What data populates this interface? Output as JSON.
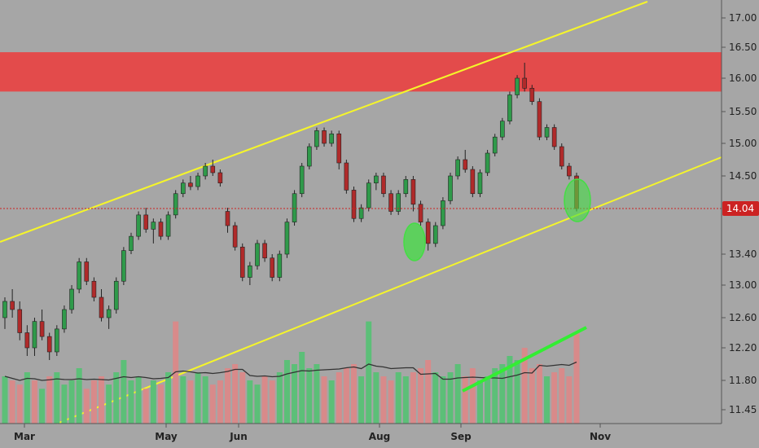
{
  "chart_data": {
    "type": "candlestick",
    "x_labels": [
      "Mar",
      "May",
      "Jun",
      "Aug",
      "Sep",
      "Nov"
    ],
    "y_ticks": [
      "17.00",
      "16.50",
      "16.00",
      "15.50",
      "15.00",
      "14.50",
      "13.40",
      "13.00",
      "12.60",
      "12.20",
      "11.80",
      "11.45"
    ],
    "last_price": {
      "label": "14.04",
      "value": 14.04,
      "color": "#cc2222"
    },
    "resistance_zone": {
      "low": 15.8,
      "high": 16.42,
      "color": "#e34b4b"
    },
    "channel_color": "#f5f52a",
    "volume_trend_color": "#33ee33",
    "marker_color": "#44dd44",
    "up_color": "#2f9a4a",
    "down_color": "#b02a2a",
    "volume_up_color": "#5cbf78",
    "volume_down_color": "#d88a8a",
    "candles": [
      [
        12.6,
        12.85,
        12.45,
        12.8
      ],
      [
        12.8,
        12.95,
        12.6,
        12.7
      ],
      [
        12.7,
        12.8,
        12.3,
        12.4
      ],
      [
        12.4,
        12.5,
        12.1,
        12.2
      ],
      [
        12.2,
        12.6,
        12.1,
        12.55
      ],
      [
        12.55,
        12.7,
        12.3,
        12.35
      ],
      [
        12.35,
        12.4,
        12.05,
        12.15
      ],
      [
        12.15,
        12.5,
        12.1,
        12.45
      ],
      [
        12.45,
        12.75,
        12.4,
        12.7
      ],
      [
        12.7,
        13.0,
        12.65,
        12.95
      ],
      [
        12.95,
        13.35,
        12.9,
        13.3
      ],
      [
        13.3,
        13.35,
        13.0,
        13.05
      ],
      [
        13.05,
        13.1,
        12.8,
        12.85
      ],
      [
        12.85,
        12.95,
        12.55,
        12.6
      ],
      [
        12.6,
        12.75,
        12.45,
        12.7
      ],
      [
        12.7,
        13.1,
        12.65,
        13.05
      ],
      [
        13.05,
        13.5,
        13.0,
        13.45
      ],
      [
        13.45,
        13.7,
        13.4,
        13.65
      ],
      [
        13.65,
        14.0,
        13.6,
        13.95
      ],
      [
        13.95,
        14.05,
        13.7,
        13.75
      ],
      [
        13.75,
        13.9,
        13.55,
        13.85
      ],
      [
        13.85,
        13.9,
        13.6,
        13.65
      ],
      [
        13.65,
        14.0,
        13.6,
        13.95
      ],
      [
        13.95,
        14.3,
        13.9,
        14.25
      ],
      [
        14.25,
        14.45,
        14.2,
        14.4
      ],
      [
        14.4,
        14.5,
        14.3,
        14.35
      ],
      [
        14.35,
        14.55,
        14.3,
        14.5
      ],
      [
        14.5,
        14.7,
        14.45,
        14.65
      ],
      [
        14.65,
        14.75,
        14.5,
        14.55
      ],
      [
        14.55,
        14.6,
        14.35,
        14.4
      ],
      [
        14.0,
        14.05,
        13.7,
        13.8
      ],
      [
        13.8,
        13.85,
        13.45,
        13.5
      ],
      [
        13.5,
        13.55,
        13.05,
        13.1
      ],
      [
        13.1,
        13.3,
        13.0,
        13.25
      ],
      [
        13.25,
        13.6,
        13.2,
        13.55
      ],
      [
        13.55,
        13.6,
        13.3,
        13.35
      ],
      [
        13.35,
        13.4,
        13.05,
        13.1
      ],
      [
        13.1,
        13.45,
        13.05,
        13.4
      ],
      [
        13.4,
        13.9,
        13.35,
        13.85
      ],
      [
        13.85,
        14.3,
        13.8,
        14.25
      ],
      [
        14.25,
        14.7,
        14.2,
        14.65
      ],
      [
        14.65,
        15.0,
        14.6,
        14.95
      ],
      [
        14.95,
        15.25,
        14.9,
        15.2
      ],
      [
        15.2,
        15.25,
        14.95,
        15.0
      ],
      [
        15.0,
        15.2,
        14.95,
        15.15
      ],
      [
        15.15,
        15.2,
        14.6,
        14.7
      ],
      [
        14.7,
        14.75,
        14.25,
        14.3
      ],
      [
        14.3,
        14.35,
        13.85,
        13.9
      ],
      [
        13.9,
        14.1,
        13.85,
        14.05
      ],
      [
        14.05,
        14.45,
        14.0,
        14.4
      ],
      [
        14.4,
        14.55,
        14.3,
        14.5
      ],
      [
        14.5,
        14.55,
        14.2,
        14.25
      ],
      [
        14.25,
        14.3,
        13.95,
        14.0
      ],
      [
        14.0,
        14.3,
        13.95,
        14.25
      ],
      [
        14.25,
        14.5,
        14.2,
        14.45
      ],
      [
        14.45,
        14.5,
        14.0,
        14.1
      ],
      [
        14.1,
        14.15,
        13.8,
        13.85
      ],
      [
        13.85,
        13.9,
        13.45,
        13.55
      ],
      [
        13.55,
        13.85,
        13.5,
        13.8
      ],
      [
        13.8,
        14.2,
        13.75,
        14.15
      ],
      [
        14.15,
        14.55,
        14.1,
        14.5
      ],
      [
        14.5,
        14.8,
        14.45,
        14.75
      ],
      [
        14.75,
        14.9,
        14.55,
        14.6
      ],
      [
        14.6,
        14.65,
        14.2,
        14.25
      ],
      [
        14.25,
        14.6,
        14.2,
        14.55
      ],
      [
        14.55,
        14.9,
        14.5,
        14.85
      ],
      [
        14.85,
        15.15,
        14.8,
        15.1
      ],
      [
        15.1,
        15.4,
        15.05,
        15.35
      ],
      [
        15.35,
        15.8,
        15.3,
        15.75
      ],
      [
        15.75,
        16.05,
        15.7,
        16.0
      ],
      [
        16.0,
        16.25,
        15.8,
        15.85
      ],
      [
        15.85,
        15.9,
        15.6,
        15.65
      ],
      [
        15.65,
        15.7,
        15.05,
        15.1
      ],
      [
        15.1,
        15.3,
        15.05,
        15.25
      ],
      [
        15.25,
        15.3,
        14.9,
        14.95
      ],
      [
        14.95,
        15.0,
        14.6,
        14.65
      ],
      [
        14.65,
        14.7,
        14.45,
        14.5
      ],
      [
        14.5,
        14.55,
        14.0,
        14.04
      ]
    ],
    "volume": [
      [
        11.85,
        1
      ],
      [
        11.8,
        0
      ],
      [
        11.75,
        0
      ],
      [
        11.9,
        1
      ],
      [
        11.8,
        0
      ],
      [
        11.7,
        1
      ],
      [
        11.85,
        0
      ],
      [
        11.9,
        1
      ],
      [
        11.75,
        1
      ],
      [
        11.8,
        1
      ],
      [
        11.95,
        1
      ],
      [
        11.7,
        0
      ],
      [
        11.8,
        0
      ],
      [
        11.85,
        0
      ],
      [
        11.75,
        1
      ],
      [
        11.9,
        1
      ],
      [
        12.05,
        1
      ],
      [
        11.8,
        1
      ],
      [
        11.85,
        1
      ],
      [
        11.7,
        0
      ],
      [
        11.8,
        1
      ],
      [
        11.75,
        0
      ],
      [
        11.9,
        1
      ],
      [
        12.55,
        0
      ],
      [
        11.85,
        1
      ],
      [
        11.8,
        0
      ],
      [
        11.9,
        1
      ],
      [
        11.85,
        1
      ],
      [
        11.75,
        0
      ],
      [
        11.8,
        0
      ],
      [
        11.95,
        0
      ],
      [
        12.0,
        0
      ],
      [
        11.9,
        0
      ],
      [
        11.8,
        1
      ],
      [
        11.75,
        1
      ],
      [
        11.85,
        0
      ],
      [
        11.8,
        0
      ],
      [
        11.9,
        1
      ],
      [
        12.05,
        1
      ],
      [
        12.0,
        1
      ],
      [
        12.15,
        1
      ],
      [
        11.95,
        1
      ],
      [
        12.0,
        1
      ],
      [
        11.85,
        0
      ],
      [
        11.8,
        1
      ],
      [
        11.9,
        0
      ],
      [
        11.95,
        0
      ],
      [
        12.0,
        0
      ],
      [
        11.85,
        1
      ],
      [
        12.55,
        1
      ],
      [
        11.9,
        1
      ],
      [
        11.85,
        0
      ],
      [
        11.8,
        0
      ],
      [
        11.9,
        1
      ],
      [
        11.85,
        1
      ],
      [
        11.9,
        0
      ],
      [
        11.95,
        0
      ],
      [
        12.05,
        0
      ],
      [
        11.9,
        1
      ],
      [
        11.85,
        1
      ],
      [
        11.9,
        1
      ],
      [
        12.0,
        1
      ],
      [
        11.85,
        0
      ],
      [
        11.95,
        0
      ],
      [
        11.8,
        1
      ],
      [
        11.85,
        1
      ],
      [
        11.95,
        1
      ],
      [
        12.0,
        1
      ],
      [
        12.1,
        1
      ],
      [
        12.05,
        1
      ],
      [
        12.2,
        0
      ],
      [
        11.95,
        0
      ],
      [
        12.0,
        0
      ],
      [
        11.85,
        1
      ],
      [
        11.9,
        0
      ],
      [
        11.95,
        0
      ],
      [
        11.85,
        0
      ],
      [
        12.4,
        0
      ]
    ]
  }
}
